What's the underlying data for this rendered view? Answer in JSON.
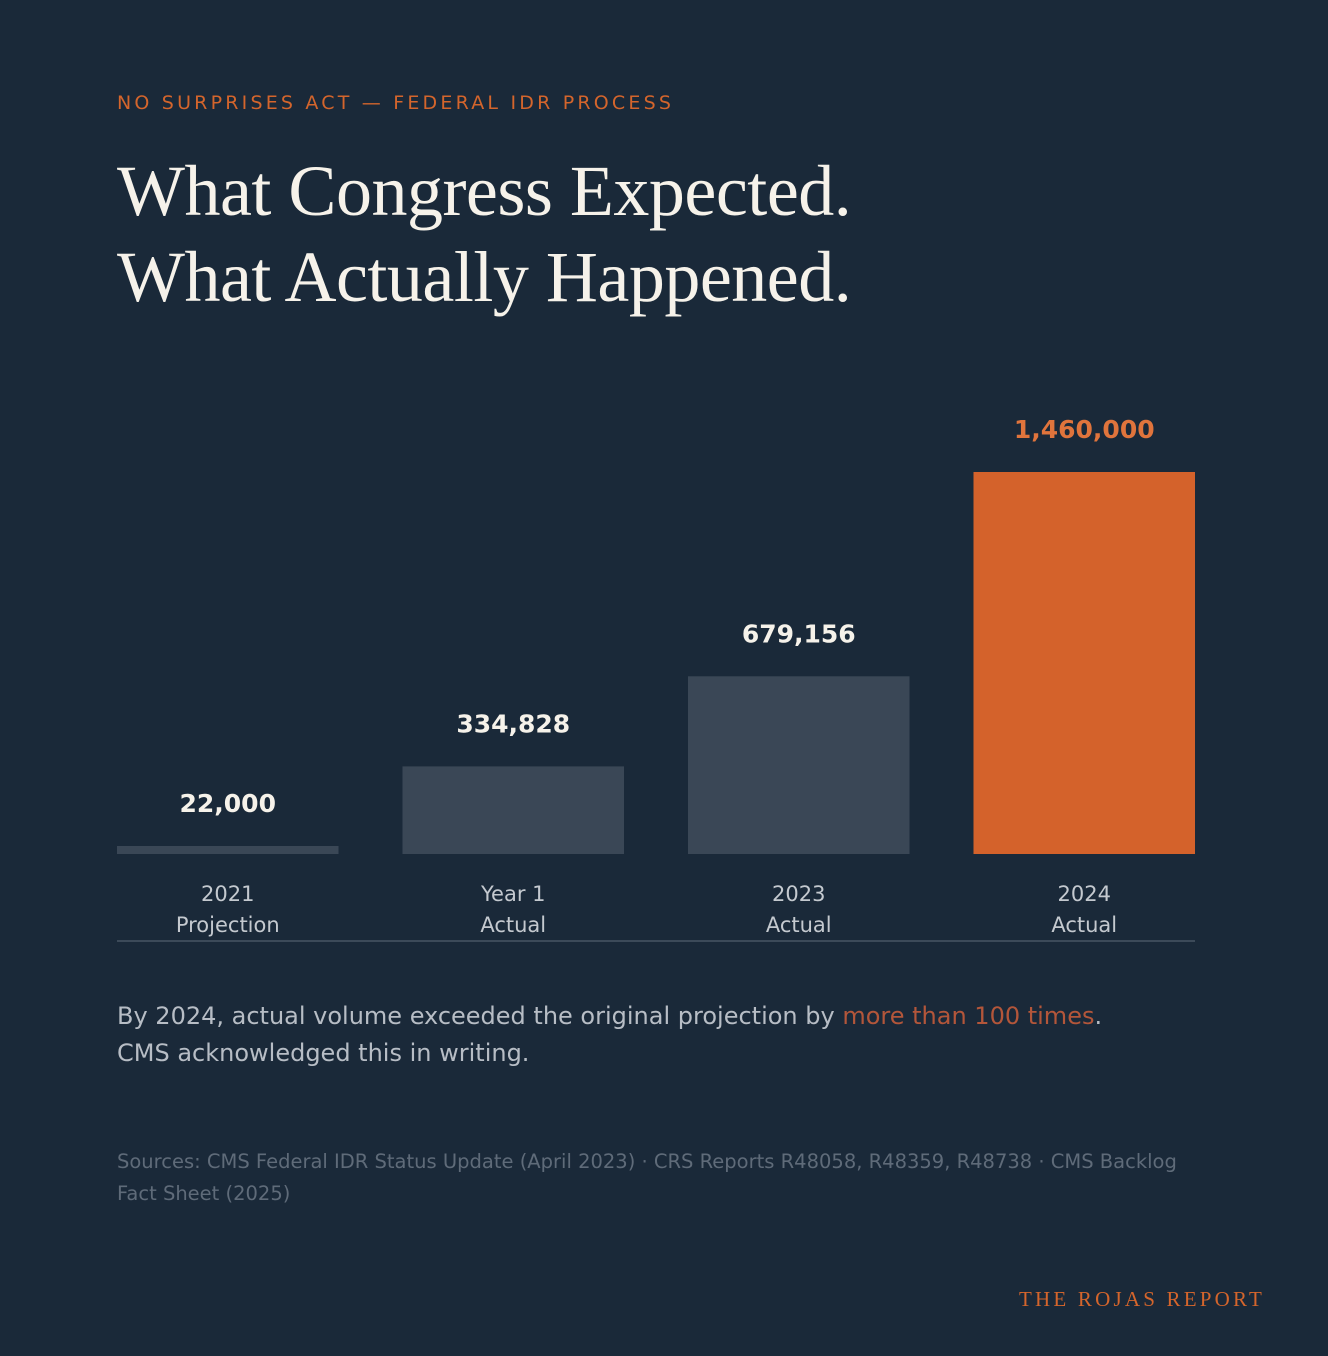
{
  "header": {
    "eyebrow": "NO SURPRISES ACT — FEDERAL IDR PROCESS",
    "title_line1": "What Congress Expected.",
    "title_line2": "What Actually Happened."
  },
  "chart_data": {
    "type": "bar",
    "categories": [
      [
        "2021",
        "Projection"
      ],
      [
        "Year 1",
        "Actual"
      ],
      [
        "2023",
        "Actual"
      ],
      [
        "2024",
        "Actual"
      ]
    ],
    "values": [
      22000,
      334828,
      679156,
      1460000
    ],
    "value_labels": [
      "22,000",
      "334,828",
      "679,156",
      "1,460,000"
    ],
    "highlight_index": 3,
    "colors": {
      "bar": "#3a4756",
      "highlight": "#d4622b",
      "label": "#f6f2ea",
      "highlight_label": "#e0743c",
      "axis": "#3c4a59",
      "tick": "#c4c9cf"
    },
    "ylim": [
      0,
      1460000
    ],
    "title": "",
    "xlabel": "",
    "ylabel": "",
    "grid": false
  },
  "summary": {
    "before": "By 2024, actual volume exceeded the original projection by ",
    "highlight": "more than 100 times",
    "after": ". CMS acknowledged this in writing."
  },
  "sources": "Sources: CMS Federal IDR Status Update (April 2023) · CRS Reports R48058, R48359, R48738 · CMS Backlog Fact Sheet (2025)",
  "brand": "THE ROJAS REPORT"
}
